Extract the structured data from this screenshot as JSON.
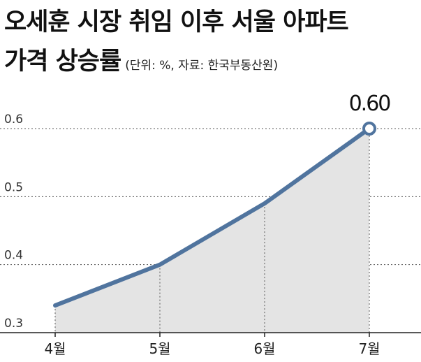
{
  "header": {
    "title_line1": "오세훈 시장 취임 이후 서울 아파트",
    "title_line2": "가격 상승률",
    "subtitle": "(단위: %, 자료: 한국부동산원)"
  },
  "chart_data": {
    "type": "area",
    "title": "오세훈 시장 취임 이후 서울 아파트 가격 상승률",
    "subtitle": "(단위: %, 자료: 한국부동산원)",
    "categories": [
      "4월",
      "5월",
      "6월",
      "7월"
    ],
    "series": [
      {
        "values": [
          0.34,
          0.4,
          0.49,
          0.6
        ]
      }
    ],
    "yticks": [
      "0.3",
      "0.4",
      "0.5",
      "0.6"
    ],
    "ylim": [
      0.3,
      0.6
    ],
    "xlabel": "",
    "ylabel": "",
    "grid": true,
    "data_labels": [
      {
        "index": 3,
        "text": "0.60"
      }
    ],
    "colors": {
      "line": "#50749e",
      "area": "#e4e4e4",
      "marker_fill": "#ffffff",
      "grid": "#555555",
      "axis": "#222222"
    }
  }
}
